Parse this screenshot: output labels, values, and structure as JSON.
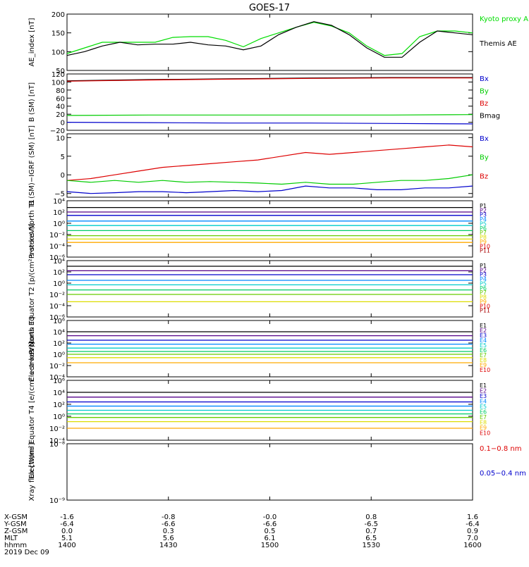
{
  "title": "GOES-17",
  "x_axis": {
    "row_labels": [
      "X-GSM",
      "Y-GSM",
      "Z-GSM",
      "MLT",
      "hhmm",
      "2019 Dec 09"
    ],
    "columns": [
      [
        "-1.6",
        "-6.4",
        "0.0",
        "5.1",
        "1400"
      ],
      [
        "-0.8",
        "-6.6",
        "0.3",
        "5.6",
        "1430"
      ],
      [
        "-0.0",
        "-6.6",
        "0.5",
        "6.1",
        "1500"
      ],
      [
        "0.8",
        "-6.5",
        "0.7",
        "6.5",
        "1530"
      ],
      [
        "1.6",
        "-6.4",
        "0.9",
        "7.0",
        "1600"
      ]
    ]
  },
  "chart_data": [
    {
      "type": "line",
      "ylabel": "AE_index [nT]",
      "ylim": [
        50,
        200
      ],
      "yticks": [
        "50",
        "100",
        "150",
        "200"
      ],
      "x_range_hhmm": [
        "1400",
        "1600"
      ],
      "legend": [
        {
          "name": "Kyoto proxy AE",
          "color": "#00dd00"
        },
        {
          "name": "Themis AE",
          "color": "#000000"
        }
      ],
      "series": [
        {
          "name": "Kyoto proxy AE",
          "color": "#00dd00",
          "values": [
            95,
            110,
            125,
            125,
            125,
            125,
            138,
            140,
            140,
            130,
            113,
            135,
            150,
            165,
            178,
            168,
            150,
            115,
            90,
            95,
            140,
            155,
            155,
            150
          ]
        },
        {
          "name": "Themis AE",
          "color": "#000000",
          "values": [
            90,
            100,
            115,
            125,
            118,
            120,
            120,
            125,
            118,
            115,
            105,
            115,
            145,
            165,
            180,
            170,
            145,
            110,
            85,
            85,
            125,
            155,
            150,
            145
          ]
        }
      ]
    },
    {
      "type": "line",
      "ylabel": "B (SM) [nT]",
      "ylim": [
        -20,
        120
      ],
      "yticks": [
        "−20",
        "0",
        "20",
        "40",
        "60",
        "80",
        "100",
        "120"
      ],
      "legend": [
        {
          "name": "Bx",
          "color": "#0000cc"
        },
        {
          "name": "By",
          "color": "#00cc00"
        },
        {
          "name": "Bz",
          "color": "#dd0000"
        },
        {
          "name": "Bmag",
          "color": "#000000"
        }
      ],
      "series": [
        {
          "name": "Bmag",
          "color": "#000000",
          "values": [
            103,
            106,
            108,
            110,
            111,
            111
          ]
        },
        {
          "name": "Bz",
          "color": "#dd0000",
          "values": [
            102,
            105,
            107,
            109,
            110,
            110
          ]
        },
        {
          "name": "By",
          "color": "#00cc00",
          "values": [
            17,
            18,
            18,
            18,
            18,
            19
          ]
        },
        {
          "name": "Bx",
          "color": "#0000cc",
          "values": [
            0,
            -1,
            -2,
            -2,
            -3,
            -4
          ]
        }
      ]
    },
    {
      "type": "line",
      "ylabel": "B (SM)−IGRF (SM) [nT]",
      "ylim": [
        -6,
        11
      ],
      "yticks": [
        "−5",
        "0",
        "5",
        "10"
      ],
      "legend": [
        {
          "name": "Bx",
          "color": "#0000cc"
        },
        {
          "name": "By",
          "color": "#00cc00"
        },
        {
          "name": "Bz",
          "color": "#dd0000"
        }
      ],
      "series": [
        {
          "name": "Bz",
          "color": "#dd0000",
          "values": [
            -1.5,
            -1,
            0,
            1,
            2,
            2.5,
            3,
            3.5,
            4,
            5,
            6,
            5.5,
            6,
            6.5,
            7,
            7.5,
            8,
            7.5
          ]
        },
        {
          "name": "By",
          "color": "#00cc00",
          "values": [
            -1.5,
            -2,
            -1.5,
            -2,
            -1.5,
            -2,
            -1.8,
            -2,
            -2.2,
            -2.5,
            -2,
            -2.5,
            -2.5,
            -2,
            -1.5,
            -1.5,
            -1,
            0
          ]
        },
        {
          "name": "Bx",
          "color": "#0000cc",
          "values": [
            -4.5,
            -5,
            -4.8,
            -4.5,
            -4.5,
            -4.8,
            -4.5,
            -4.2,
            -4.5,
            -4.2,
            -3,
            -3.5,
            -3.5,
            -4,
            -4,
            -3.5,
            -3.5,
            -3
          ]
        }
      ]
    },
    {
      "type": "line",
      "ylabel": "Protons North T1",
      "scale": "log",
      "ylim_exp": [
        -6,
        4
      ],
      "yticks": [
        "10⁴",
        "10²",
        "10⁰",
        "10⁻²",
        "10⁻⁴",
        "10⁻⁶"
      ],
      "legend": [
        "P1",
        "P2",
        "P3",
        "P4",
        "P5",
        "P6",
        "P7",
        "P8",
        "P9",
        "P10",
        "P11"
      ],
      "channels_log10": [
        2.8,
        2.0,
        1.4,
        0.4,
        -0.4,
        -1.3,
        -2.2,
        -2.8,
        -3.4
      ]
    },
    {
      "type": "line",
      "ylabel": "Protons Equator T2 [p/(cm²·s·sr·keV)]",
      "scale": "log",
      "ylim_exp": [
        -6,
        4
      ],
      "yticks": [
        "10⁴",
        "10²",
        "10⁰",
        "10⁻²",
        "10⁻⁴",
        "10⁻⁶"
      ],
      "legend": [
        "P1",
        "P2",
        "P3",
        "P4",
        "P5",
        "P6",
        "P7",
        "P8",
        "P9",
        "P10",
        "P11"
      ],
      "channels_log10": [
        3.0,
        2.2,
        1.5,
        0.5,
        -0.3,
        -1.2,
        -2.0,
        -3.3
      ]
    },
    {
      "type": "line",
      "ylabel": "Electrons North T3",
      "scale": "log",
      "ylim_exp": [
        -4,
        6
      ],
      "yticks": [
        "10⁶",
        "10⁴",
        "10²",
        "10⁰",
        "10⁻²",
        "10⁻⁴"
      ],
      "legend": [
        "E1",
        "E2",
        "E3",
        "E4",
        "E5",
        "E6",
        "E7",
        "E8",
        "E9",
        "E10"
      ],
      "channels_log10": [
        4.0,
        3.3,
        2.5,
        1.8,
        1.1,
        0.5,
        0.0,
        -0.6,
        -1.5
      ]
    },
    {
      "type": "line",
      "ylabel": "Electrons Equator T4 [e/(cm²·s·sr·keV)]",
      "scale": "log",
      "ylim_exp": [
        -4,
        6
      ],
      "yticks": [
        "10⁶",
        "10⁴",
        "10²",
        "10⁰",
        "10⁻²",
        "10⁻⁴"
      ],
      "legend": [
        "E1",
        "E2",
        "E3",
        "E4",
        "E5",
        "E6",
        "E7",
        "E8",
        "E9",
        "E10"
      ],
      "channels_log10": [
        4.0,
        3.2,
        2.4,
        1.7,
        1.0,
        0.4,
        -0.2,
        -0.9,
        -2.0
      ]
    },
    {
      "type": "line",
      "ylabel": "Xray flux [W/m²]",
      "scale": "log",
      "ylim_exp": [
        -9,
        -8
      ],
      "yticks": [
        "10⁻⁸",
        "10⁻⁹"
      ],
      "legend": [
        {
          "name": "0.1−0.8 nm",
          "color": "#dd0000"
        },
        {
          "name": "0.05−0.4 nm",
          "color": "#0000cc"
        }
      ]
    }
  ]
}
